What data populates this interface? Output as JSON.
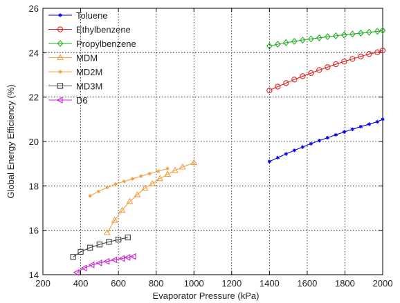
{
  "chart_data": {
    "type": "line",
    "title": "",
    "xlabel": "Evaporator Pressure  (kPa)",
    "ylabel": "Global Energy Efficiency (%)",
    "xlim": [
      200,
      2000
    ],
    "ylim": [
      14,
      26
    ],
    "xticks": [
      200,
      400,
      600,
      800,
      1000,
      1200,
      1400,
      1600,
      1800,
      2000
    ],
    "yticks": [
      14,
      16,
      18,
      20,
      22,
      24,
      26
    ],
    "grid": true,
    "legend_position": "top-left",
    "series": [
      {
        "name": "Toluene",
        "color": "#0000ee",
        "marker": "star",
        "x": [
          1400,
          1444,
          1488,
          1532,
          1576,
          1620,
          1664,
          1708,
          1752,
          1796,
          1840,
          1884,
          1928,
          1972,
          2000
        ],
        "y": [
          19.1,
          19.27,
          19.44,
          19.6,
          19.75,
          19.9,
          20.04,
          20.17,
          20.3,
          20.43,
          20.55,
          20.67,
          20.78,
          20.89,
          21.0
        ]
      },
      {
        "name": "Ethylbenzene",
        "color": "#e02020",
        "marker": "circle",
        "x": [
          1400,
          1444,
          1488,
          1532,
          1576,
          1620,
          1664,
          1708,
          1752,
          1796,
          1840,
          1884,
          1928,
          1972,
          2000
        ],
        "y": [
          22.3,
          22.47,
          22.63,
          22.79,
          22.94,
          23.08,
          23.22,
          23.35,
          23.48,
          23.6,
          23.72,
          23.83,
          23.94,
          24.02,
          24.1
        ]
      },
      {
        "name": "Propylbenzene",
        "color": "#22aa22",
        "marker": "diamond",
        "x": [
          1400,
          1444,
          1488,
          1532,
          1576,
          1620,
          1664,
          1708,
          1752,
          1796,
          1840,
          1884,
          1928,
          1972,
          2000
        ],
        "y": [
          24.3,
          24.38,
          24.45,
          24.51,
          24.57,
          24.62,
          24.67,
          24.72,
          24.76,
          24.8,
          24.84,
          24.88,
          24.92,
          24.96,
          25.0
        ]
      },
      {
        "name": "MDM",
        "color": "#f0a040",
        "marker": "triangle",
        "x": [
          540,
          580,
          620,
          660,
          700,
          740,
          780,
          820,
          860,
          900,
          940,
          1000
        ],
        "y": [
          15.9,
          16.45,
          16.9,
          17.3,
          17.6,
          17.9,
          18.1,
          18.33,
          18.52,
          18.7,
          18.85,
          19.05
        ],
        "show_line": true
      },
      {
        "name": "MD2M",
        "color": "#f0a040",
        "marker": "star",
        "x": [
          450,
          495,
          540,
          585,
          630,
          675,
          720,
          765,
          810,
          860
        ],
        "y": [
          17.55,
          17.75,
          17.93,
          18.08,
          18.2,
          18.32,
          18.44,
          18.55,
          18.66,
          18.78
        ]
      },
      {
        "name": "MD3M",
        "color": "#404040",
        "marker": "square",
        "x": [
          360,
          400,
          450,
          500,
          550,
          600,
          650
        ],
        "y": [
          14.8,
          15.03,
          15.22,
          15.36,
          15.48,
          15.58,
          15.68
        ]
      },
      {
        "name": "D6",
        "color": "#cc22cc",
        "marker": "triangle-left",
        "x": [
          380,
          420,
          460,
          500,
          540,
          580,
          620,
          650,
          680
        ],
        "y": [
          14.1,
          14.3,
          14.44,
          14.53,
          14.6,
          14.67,
          14.73,
          14.78,
          14.82
        ]
      }
    ]
  }
}
